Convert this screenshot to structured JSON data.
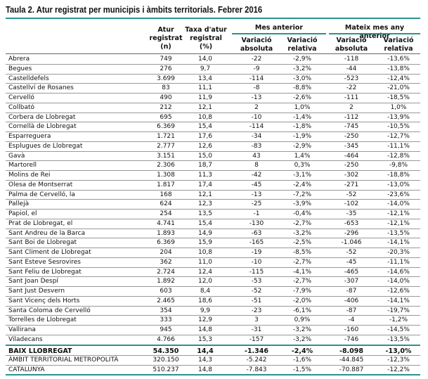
{
  "title": "Taula 2. Atur registrat per municipis i àmbits territorials. Febrer 2016",
  "headers": {
    "atur": "Atur registrat (n)",
    "taxa": "Taxa d'atur registral (%)",
    "mes_anterior": "Mes anterior",
    "mateix_mes": "Mateix mes any anterior",
    "var_abs": "Variació absoluta",
    "var_rel": "Variació relativa"
  },
  "rows": [
    [
      "Abrera",
      "749",
      "14,0",
      "-22",
      "-2,9%",
      "-118",
      "-13,6%"
    ],
    [
      "Begues",
      "276",
      "9,7",
      "-9",
      "-3,2%",
      "-44",
      "-13,8%"
    ],
    [
      "Castelldefels",
      "3.699",
      "13,4",
      "-114",
      "-3,0%",
      "-523",
      "-12,4%"
    ],
    [
      "Castellví de Rosanes",
      "83",
      "11,1",
      "-8",
      "-8,8%",
      "-22",
      "-21,0%"
    ],
    [
      "Cervelló",
      "490",
      "11,9",
      "-13",
      "-2,6%",
      "-111",
      "-18,5%"
    ],
    [
      "Collbató",
      "212",
      "12,1",
      "2",
      "1,0%",
      "2",
      "1,0%"
    ],
    [
      "Corbera de Llobregat",
      "695",
      "10,8",
      "-10",
      "-1,4%",
      "-112",
      "-13,9%"
    ],
    [
      "Cornellà de Llobregat",
      "6.369",
      "15,4",
      "-114",
      "-1,8%",
      "-745",
      "-10,5%"
    ],
    [
      "Esparreguera",
      "1.721",
      "17,6",
      "-34",
      "-1,9%",
      "-250",
      "-12,7%"
    ],
    [
      "Esplugues de Llobregat",
      "2.777",
      "12,6",
      "-83",
      "-2,9%",
      "-345",
      "-11,1%"
    ],
    [
      "Gavà",
      "3.151",
      "15,0",
      "43",
      "1,4%",
      "-464",
      "-12,8%"
    ],
    [
      "Martorell",
      "2.306",
      "18,7",
      "8",
      "0,3%",
      "-250",
      "-9,8%"
    ],
    [
      "Molins de Rei",
      "1.308",
      "11,3",
      "-42",
      "-3,1%",
      "-302",
      "-18,8%"
    ],
    [
      "Olesa de Montserrat",
      "1.817",
      "17,4",
      "-45",
      "-2,4%",
      "-271",
      "-13,0%"
    ],
    [
      "Palma de Cervelló, la",
      "168",
      "12,1",
      "-13",
      "-7,2%",
      "-52",
      "-23,6%"
    ],
    [
      "Pallejà",
      "624",
      "12,3",
      "-25",
      "-3,9%",
      "-102",
      "-14,0%"
    ],
    [
      "Papiol, el",
      "254",
      "13,5",
      "-1",
      "-0,4%",
      "-35",
      "-12,1%"
    ],
    [
      "Prat de Llobregat, el",
      "4.741",
      "15,4",
      "-130",
      "-2,7%",
      "-653",
      "-12,1%"
    ],
    [
      "Sant Andreu de la Barca",
      "1.893",
      "14,9",
      "-63",
      "-3,2%",
      "-296",
      "-13,5%"
    ],
    [
      "Sant Boi de Llobregat",
      "6.369",
      "15,9",
      "-165",
      "-2,5%",
      "-1.046",
      "-14,1%"
    ],
    [
      "Sant Climent de Llobregat",
      "204",
      "10,8",
      "-19",
      "-8,5%",
      "-52",
      "-20,3%"
    ],
    [
      "Sant Esteve Sesrovires",
      "362",
      "11,0",
      "-10",
      "-2,7%",
      "-45",
      "-11,1%"
    ],
    [
      "Sant Feliu de Llobregat",
      "2.724",
      "12,4",
      "-115",
      "-4,1%",
      "-465",
      "-14,6%"
    ],
    [
      "Sant Joan Despí",
      "1.892",
      "12,0",
      "-53",
      "-2,7%",
      "-307",
      "-14,0%"
    ],
    [
      "Sant Just Desvern",
      "603",
      "8,4",
      "-52",
      "-7,9%",
      "-87",
      "-12,6%"
    ],
    [
      "Sant Vicenç dels Horts",
      "2.465",
      "18,6",
      "-51",
      "-2,0%",
      "-406",
      "-14,1%"
    ],
    [
      "Santa Coloma de Cervelló",
      "354",
      "9,9",
      "-23",
      "-6,1%",
      "-87",
      "-19,7%"
    ],
    [
      "Torrelles de Llobregat",
      "333",
      "12,9",
      "3",
      "0,9%",
      "-4",
      "-1,2%"
    ],
    [
      "Vallirana",
      "945",
      "14,8",
      "-31",
      "-3,2%",
      "-160",
      "-14,5%"
    ],
    [
      "Viladecans",
      "4.766",
      "15,3",
      "-157",
      "-3,2%",
      "-746",
      "-13,5%"
    ]
  ],
  "totals": [
    [
      "BAIX LLOBREGAT",
      "54.350",
      "14,4",
      "-1.346",
      "-2,4%",
      "-8.098",
      "-13,0%"
    ],
    [
      "ÀMBIT TERRITORIAL METROPOLITÀ",
      "320.150",
      "14,3",
      "-5.242",
      "-1,6%",
      "-44.845",
      "-12,3%"
    ],
    [
      "CATALUNYA",
      "510.237",
      "14,8",
      "-7.843",
      "-1,5%",
      "-70.887",
      "-12,2%"
    ]
  ],
  "colors": {
    "accent": "#2a948f"
  }
}
